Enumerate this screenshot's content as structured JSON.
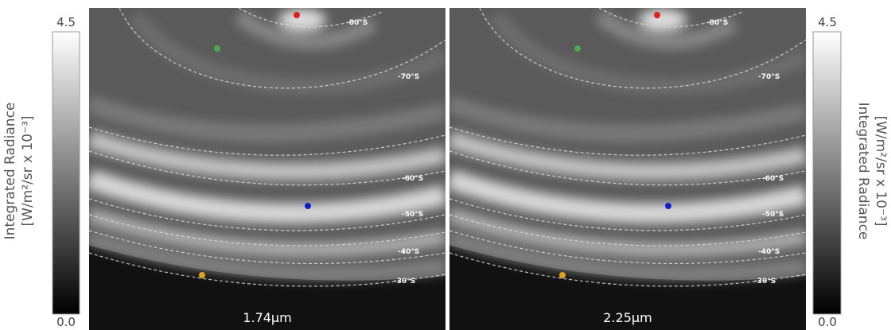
{
  "colorbar_left": {
    "max": "4.5",
    "min": "0.0",
    "label": [
      "Integrated Radiance",
      "[W/m²/sr  x 10⁻³]"
    ]
  },
  "colorbar_right": {
    "max": "4.5",
    "min": "0.0",
    "label": [
      "Integrated Radiance",
      "[W/m²/sr  x 10⁻³]"
    ]
  },
  "panels": [
    {
      "wavelength": "1.74μm",
      "latitudes": [
        "-80°S",
        "-70°S",
        "-60°S",
        "-50°S",
        "-40°S",
        "-30°S"
      ]
    },
    {
      "wavelength": "2.25μm",
      "latitudes": [
        "-80°S",
        "-70°S",
        "-60°S",
        "-50°S",
        "-40°S",
        "-30°S"
      ]
    }
  ]
}
